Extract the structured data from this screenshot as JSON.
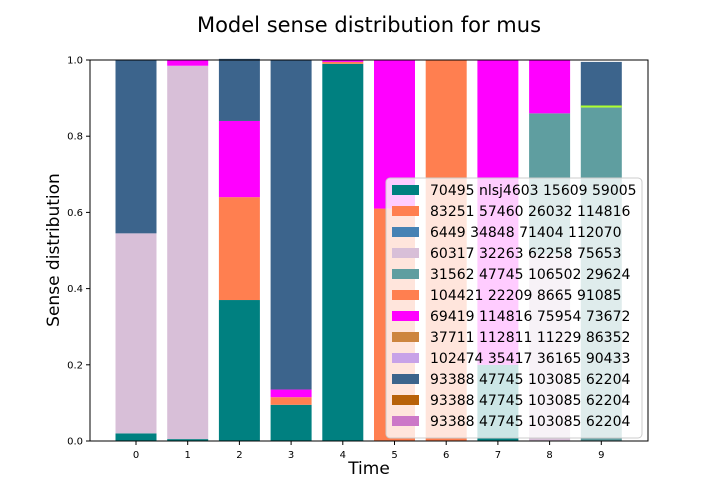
{
  "chart_data": {
    "type": "bar",
    "stacked": true,
    "title": "Model sense distribution for mus",
    "xlabel": "Time",
    "ylabel": "Sense distribution",
    "categories": [
      "0",
      "1",
      "2",
      "3",
      "4",
      "5",
      "6",
      "7",
      "8",
      "9"
    ],
    "ylim": [
      0,
      1.0
    ],
    "yticks": [
      "0.0",
      "0.2",
      "0.4",
      "0.6",
      "0.8",
      "1.0"
    ],
    "grid": false,
    "legend_position": "center-right",
    "series": [
      {
        "name": "70495 nlsj4603 15609 59005",
        "color": "#008080",
        "values": [
          0.02,
          0.005,
          0.37,
          0.095,
          0.99,
          0.0,
          0.0,
          0.2,
          0.0,
          0.0
        ]
      },
      {
        "name": "83251 57460 26032 114816",
        "color": "#ff7f50",
        "values": [
          0.0,
          0.0,
          0.27,
          0.02,
          0.005,
          0.0,
          1.0,
          0.0,
          0.0,
          0.0
        ]
      },
      {
        "name": "6449 34848 71404 112070",
        "color": "#4682b4",
        "values": [
          0,
          0,
          0,
          0,
          0,
          0,
          0,
          0,
          0,
          0
        ]
      },
      {
        "name": "60317 32263 62258 75653",
        "color": "#d8bfd8",
        "values": [
          0.525,
          0.98,
          0.0,
          0.0,
          0.0,
          0.0,
          0.0,
          0.0,
          0.49,
          0.0
        ]
      },
      {
        "name": "31562 47745 106502 29624",
        "color": "#5f9ea0",
        "values": [
          0.0,
          0.0,
          0.0,
          0.0,
          0.0,
          0.0,
          0.0,
          0.0,
          0.37,
          0.875
        ]
      },
      {
        "name": "104421 22209 8665 91085",
        "color": "#ff7f50",
        "values": [
          0,
          0,
          0,
          0,
          0,
          0.61,
          0,
          0,
          0,
          0
        ]
      },
      {
        "name": "69419 114816 75954 73672",
        "color": "#ff00ff",
        "values": [
          0.0,
          0.015,
          0.2,
          0.02,
          0.005,
          0.39,
          0.0,
          0.8,
          0.14,
          0.0
        ]
      },
      {
        "name": "37711 112811 11229 86352",
        "color": "#cd853f",
        "values": [
          0,
          0,
          0,
          0,
          0,
          0,
          0,
          0,
          0,
          0
        ]
      },
      {
        "name": "102474 35417 36165 90433",
        "color": "#c8a2e8",
        "values": [
          0,
          0,
          0,
          0,
          0,
          0,
          0,
          0,
          0,
          0
        ]
      },
      {
        "name": "93388 47745 103085 62204",
        "color": "#3c648c",
        "values": [
          0.455,
          0.0,
          0.163,
          0.865,
          0.0,
          0.0,
          0.0,
          0.0,
          0.0,
          0.12
        ]
      },
      {
        "name": "93388 47745 103085 62204",
        "color": "#b8620a",
        "values": [
          0,
          0,
          0,
          0,
          0,
          0,
          0,
          0,
          0,
          0
        ]
      },
      {
        "name": "93388 47745 103085 62204",
        "color": "#cc78c8",
        "values": [
          0,
          0,
          0,
          0,
          0,
          0,
          0,
          0,
          0,
          0
        ]
      }
    ],
    "extra_marks": [
      {
        "category": "9",
        "at": 0.878,
        "color": "#adff2f"
      }
    ]
  }
}
